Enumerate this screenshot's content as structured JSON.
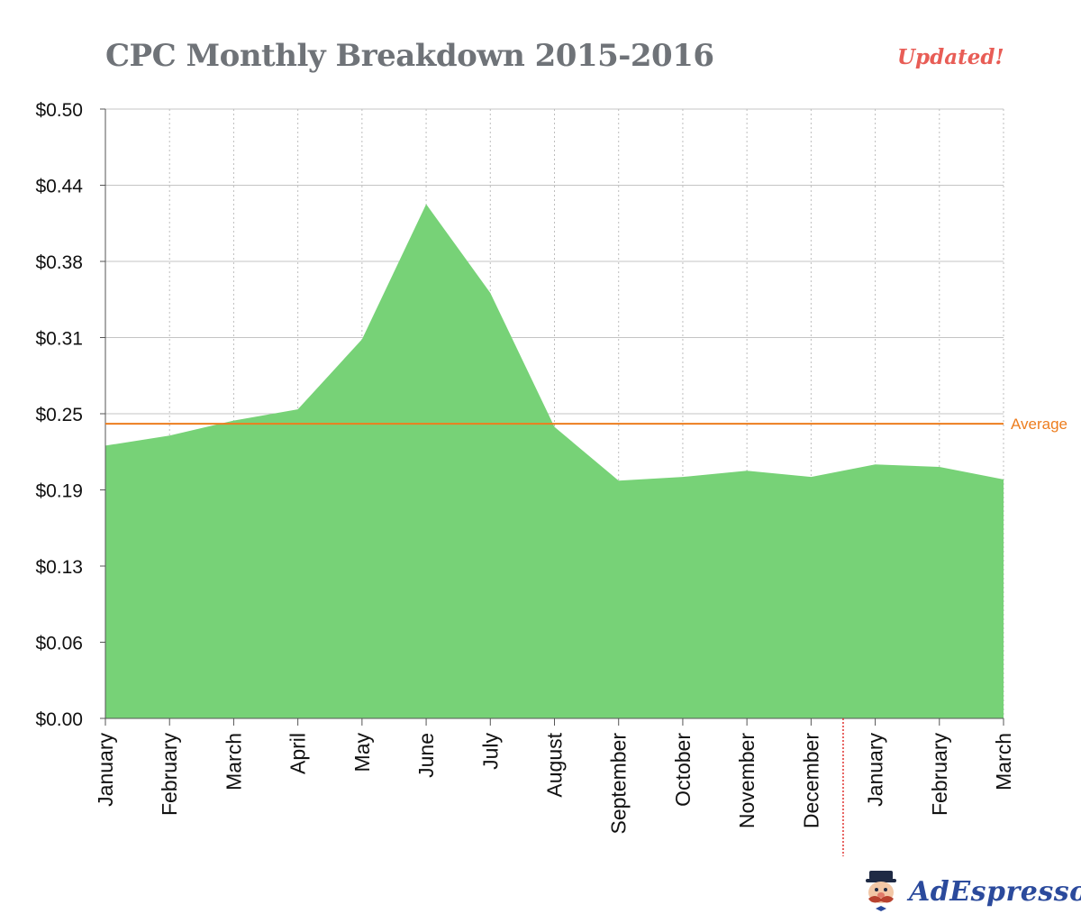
{
  "header": {
    "title": "CPC Monthly Breakdown 2015-2016",
    "badge": "Updated!"
  },
  "brand": {
    "name": "AdEspresso"
  },
  "colors": {
    "area": "#77d277",
    "average": "#ed7d1e",
    "divider": "#e0312e",
    "grid": "#c4c4c4"
  },
  "chart_data": {
    "type": "area",
    "title": "CPC Monthly Breakdown 2015-2016",
    "xlabel": "",
    "ylabel": "",
    "categories": [
      "January",
      "February",
      "March",
      "April",
      "May",
      "June",
      "July",
      "August",
      "September",
      "October",
      "November",
      "December",
      "January",
      "February",
      "March"
    ],
    "series": [
      {
        "values": [
          0.218,
          0.226,
          0.238,
          0.247,
          0.303,
          0.411,
          0.34,
          0.233,
          0.19,
          0.193,
          0.198,
          0.193,
          0.203,
          0.201,
          0.191
        ]
      }
    ],
    "y_tick_labels": [
      "$0.00",
      "$0.06",
      "$0.13",
      "$0.19",
      "$0.25",
      "$0.31",
      "$0.38",
      "$0.44",
      "$0.50"
    ],
    "ylim": [
      0,
      0.487
    ],
    "average": {
      "label": "Average",
      "value": 0.2355
    },
    "year_divider_after_index": 11,
    "grid": true,
    "legend": "none"
  }
}
